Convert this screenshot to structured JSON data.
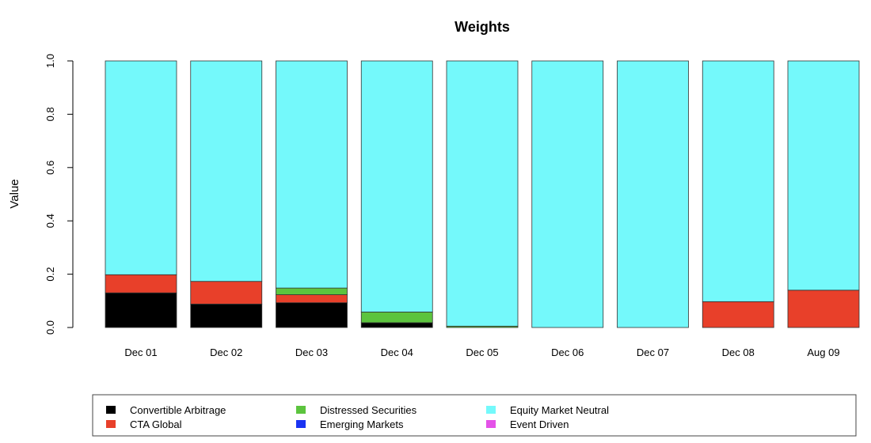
{
  "chart_data": {
    "type": "bar",
    "stacked": true,
    "title": "Weights",
    "ylabel": "Value",
    "xlabel": "",
    "ylim": [
      0,
      1
    ],
    "yticks": [
      "0.0",
      "0.2",
      "0.4",
      "0.6",
      "0.8",
      "1.0"
    ],
    "categories": [
      "Dec 01",
      "Dec 02",
      "Dec 03",
      "Dec 04",
      "Dec 05",
      "Dec 06",
      "Dec 07",
      "Dec 08",
      "Aug 09"
    ],
    "series": [
      {
        "name": "Convertible Arbitrage",
        "color": "#000000",
        "values": [
          0.13,
          0.088,
          0.093,
          0.018,
          0.0,
          0.0,
          0.0,
          0.0,
          0.0
        ]
      },
      {
        "name": "CTA Global",
        "color": "#e8402a",
        "values": [
          0.068,
          0.085,
          0.03,
          0.0,
          0.0,
          0.0,
          0.0,
          0.097,
          0.14
        ]
      },
      {
        "name": "Distressed Securities",
        "color": "#5cc43e",
        "values": [
          0.0,
          0.0,
          0.025,
          0.04,
          0.005,
          0.0,
          0.0,
          0.0,
          0.0
        ]
      },
      {
        "name": "Emerging Markets",
        "color": "#1a33f2",
        "values": [
          0.0,
          0.0,
          0.0,
          0.0,
          0.0,
          0.0,
          0.0,
          0.0,
          0.0
        ]
      },
      {
        "name": "Equity Market Neutral",
        "color": "#74f9fb",
        "values": [
          0.802,
          0.827,
          0.852,
          0.942,
          0.995,
          1.0,
          1.0,
          0.903,
          0.86
        ]
      },
      {
        "name": "Event Driven",
        "color": "#e452e8",
        "values": [
          0.0,
          0.0,
          0.0,
          0.0,
          0.0,
          0.0,
          0.0,
          0.0,
          0.0
        ]
      }
    ],
    "legend": {
      "position": "bottom",
      "columns": 3
    },
    "grid": false
  }
}
